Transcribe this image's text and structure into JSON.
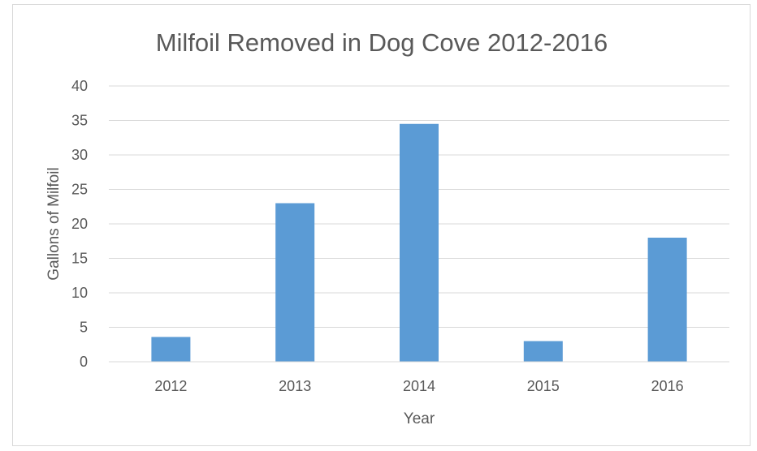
{
  "chart_data": {
    "type": "bar",
    "title": "Milfoil Removed in Dog Cove 2012-2016",
    "xlabel": "Year",
    "ylabel": "Gallons of Milfoil",
    "categories": [
      "2012",
      "2013",
      "2014",
      "2015",
      "2016"
    ],
    "values": [
      3.6,
      23,
      34.5,
      3,
      18
    ],
    "ylim": [
      0,
      40
    ],
    "yticks": [
      0,
      5,
      10,
      15,
      20,
      25,
      30,
      35,
      40
    ],
    "grid": true,
    "legend": "none",
    "bar_color": "#5b9bd5"
  }
}
